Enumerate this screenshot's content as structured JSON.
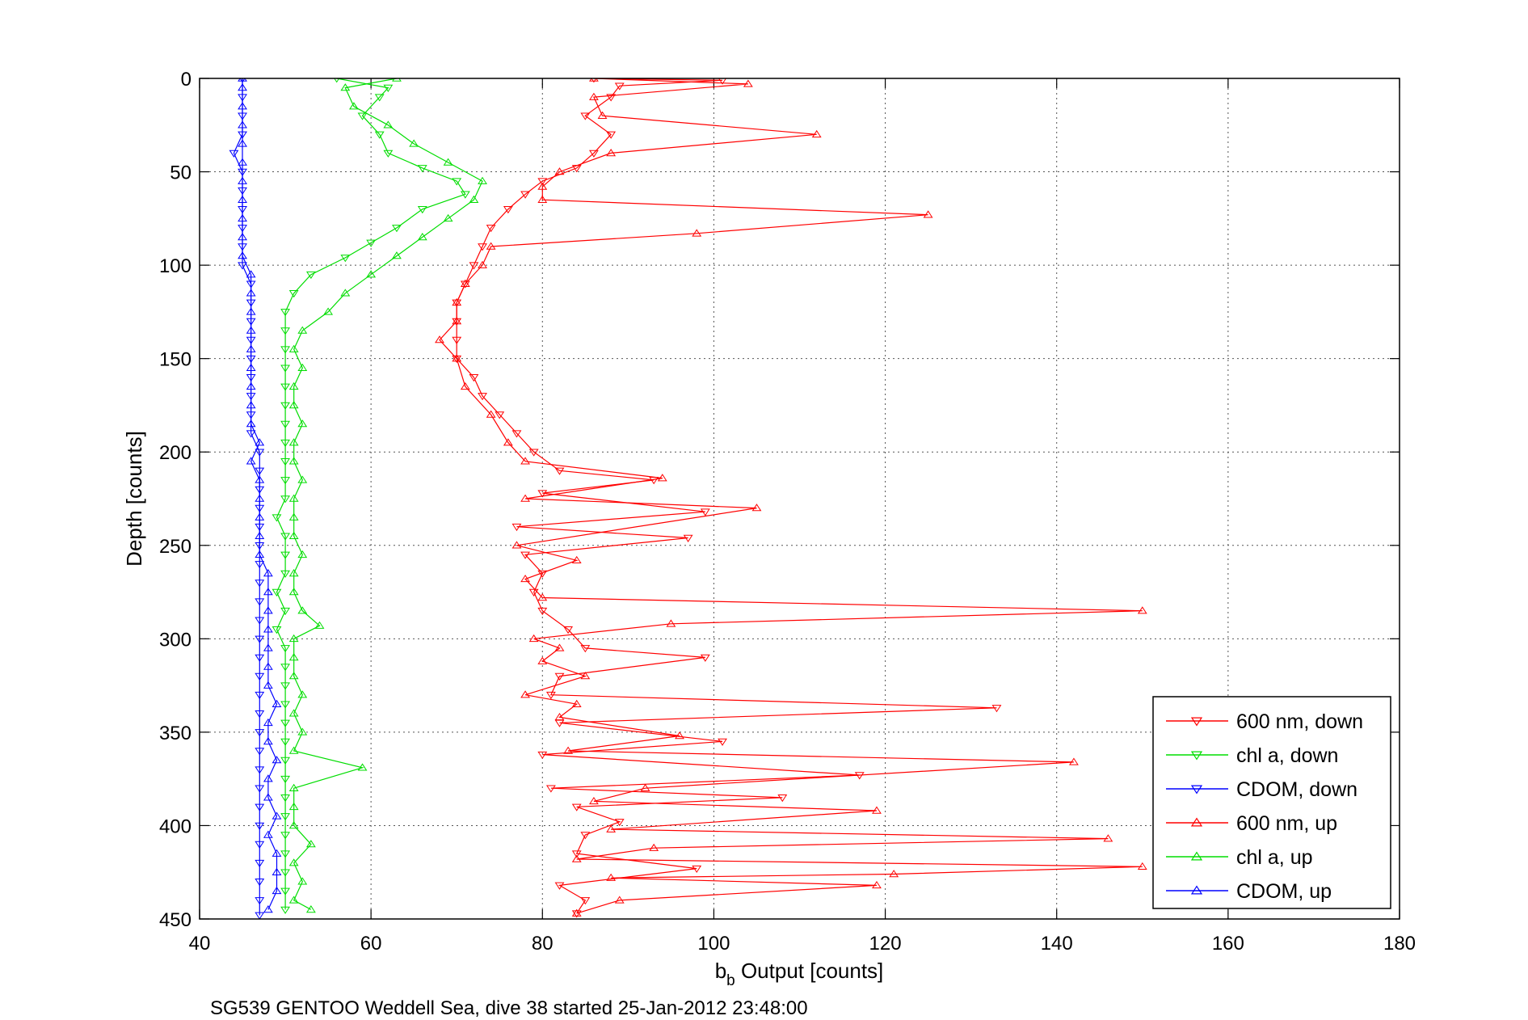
{
  "chart_data": {
    "type": "line",
    "xlabel_main": "b",
    "xlabel_sub": "b",
    "xlabel_rest": " Output [counts]",
    "ylabel": "Depth [counts]",
    "caption": "SG539 GENTOO Weddell Sea, dive 38 started 25-Jan-2012 23:48:00",
    "xlim": [
      40,
      180
    ],
    "ylim": [
      0,
      450
    ],
    "y_reversed": true,
    "grid": true,
    "legend_placement": "bottom-right",
    "x_ticks": [
      "40",
      "60",
      "80",
      "100",
      "120",
      "140",
      "160",
      "180"
    ],
    "y_ticks": [
      "0",
      "50",
      "100",
      "150",
      "200",
      "250",
      "300",
      "350",
      "400",
      "450"
    ],
    "series": [
      {
        "name": "600 nm, down",
        "color": "#ff0000",
        "marker": "triangle-down",
        "points": [
          [
            86,
            0
          ],
          [
            101,
            1
          ],
          [
            89,
            4
          ],
          [
            88,
            10
          ],
          [
            85,
            20
          ],
          [
            88,
            30
          ],
          [
            86,
            40
          ],
          [
            84,
            48
          ],
          [
            80,
            55
          ],
          [
            78,
            62
          ],
          [
            76,
            70
          ],
          [
            74,
            80
          ],
          [
            73,
            90
          ],
          [
            72,
            100
          ],
          [
            71,
            110
          ],
          [
            70,
            120
          ],
          [
            70,
            130
          ],
          [
            70,
            140
          ],
          [
            70,
            150
          ],
          [
            72,
            160
          ],
          [
            73,
            170
          ],
          [
            75,
            180
          ],
          [
            77,
            190
          ],
          [
            79,
            200
          ],
          [
            82,
            210
          ],
          [
            93,
            215
          ],
          [
            80,
            222
          ],
          [
            99,
            232
          ],
          [
            77,
            240
          ],
          [
            97,
            246
          ],
          [
            78,
            255
          ],
          [
            80,
            265
          ],
          [
            79,
            275
          ],
          [
            80,
            285
          ],
          [
            83,
            295
          ],
          [
            85,
            305
          ],
          [
            99,
            310
          ],
          [
            82,
            320
          ],
          [
            81,
            330
          ],
          [
            133,
            337
          ],
          [
            82,
            345
          ],
          [
            101,
            355
          ],
          [
            80,
            362
          ],
          [
            117,
            373
          ],
          [
            81,
            380
          ],
          [
            108,
            385
          ],
          [
            84,
            390
          ],
          [
            89,
            398
          ],
          [
            85,
            405
          ],
          [
            84,
            415
          ],
          [
            98,
            423
          ],
          [
            82,
            432
          ],
          [
            85,
            440
          ],
          [
            84,
            447
          ]
        ]
      },
      {
        "name": "chl a, down",
        "color": "#00dd00",
        "marker": "triangle-down",
        "points": [
          [
            56,
            0
          ],
          [
            62,
            5
          ],
          [
            61,
            10
          ],
          [
            59,
            20
          ],
          [
            61,
            30
          ],
          [
            62,
            40
          ],
          [
            66,
            48
          ],
          [
            70,
            55
          ],
          [
            71,
            62
          ],
          [
            66,
            70
          ],
          [
            63,
            80
          ],
          [
            60,
            88
          ],
          [
            57,
            96
          ],
          [
            53,
            105
          ],
          [
            51,
            115
          ],
          [
            50,
            125
          ],
          [
            50,
            135
          ],
          [
            50,
            145
          ],
          [
            50,
            155
          ],
          [
            50,
            165
          ],
          [
            50,
            175
          ],
          [
            50,
            185
          ],
          [
            50,
            195
          ],
          [
            50,
            205
          ],
          [
            50,
            215
          ],
          [
            50,
            225
          ],
          [
            49,
            235
          ],
          [
            50,
            245
          ],
          [
            50,
            255
          ],
          [
            50,
            265
          ],
          [
            49,
            275
          ],
          [
            50,
            285
          ],
          [
            49,
            295
          ],
          [
            50,
            305
          ],
          [
            50,
            315
          ],
          [
            50,
            325
          ],
          [
            50,
            335
          ],
          [
            50,
            345
          ],
          [
            50,
            355
          ],
          [
            50,
            365
          ],
          [
            50,
            375
          ],
          [
            50,
            385
          ],
          [
            50,
            395
          ],
          [
            50,
            405
          ],
          [
            50,
            415
          ],
          [
            50,
            425
          ],
          [
            50,
            435
          ],
          [
            50,
            445
          ]
        ]
      },
      {
        "name": "CDOM, down",
        "color": "#0000ff",
        "marker": "triangle-down",
        "points": [
          [
            45,
            0
          ],
          [
            45,
            10
          ],
          [
            45,
            20
          ],
          [
            45,
            30
          ],
          [
            44,
            40
          ],
          [
            45,
            50
          ],
          [
            45,
            60
          ],
          [
            45,
            70
          ],
          [
            45,
            80
          ],
          [
            45,
            90
          ],
          [
            45,
            100
          ],
          [
            46,
            110
          ],
          [
            46,
            120
          ],
          [
            46,
            130
          ],
          [
            46,
            140
          ],
          [
            46,
            150
          ],
          [
            46,
            160
          ],
          [
            46,
            170
          ],
          [
            46,
            180
          ],
          [
            46,
            190
          ],
          [
            47,
            200
          ],
          [
            47,
            210
          ],
          [
            47,
            220
          ],
          [
            47,
            230
          ],
          [
            47,
            240
          ],
          [
            47,
            250
          ],
          [
            47,
            260
          ],
          [
            47,
            270
          ],
          [
            47,
            280
          ],
          [
            47,
            290
          ],
          [
            47,
            300
          ],
          [
            47,
            310
          ],
          [
            47,
            320
          ],
          [
            47,
            330
          ],
          [
            47,
            340
          ],
          [
            47,
            350
          ],
          [
            47,
            360
          ],
          [
            47,
            370
          ],
          [
            47,
            380
          ],
          [
            47,
            390
          ],
          [
            47,
            400
          ],
          [
            47,
            410
          ],
          [
            47,
            420
          ],
          [
            47,
            430
          ],
          [
            47,
            440
          ],
          [
            47,
            448
          ]
        ]
      },
      {
        "name": "600 nm, up",
        "color": "#ff0000",
        "marker": "triangle-up",
        "points": [
          [
            84,
            447
          ],
          [
            89,
            440
          ],
          [
            119,
            432
          ],
          [
            88,
            428
          ],
          [
            121,
            426
          ],
          [
            150,
            422
          ],
          [
            84,
            418
          ],
          [
            93,
            412
          ],
          [
            146,
            407
          ],
          [
            88,
            402
          ],
          [
            119,
            392
          ],
          [
            86,
            387
          ],
          [
            92,
            380
          ],
          [
            142,
            366
          ],
          [
            83,
            360
          ],
          [
            96,
            352
          ],
          [
            82,
            342
          ],
          [
            84,
            335
          ],
          [
            78,
            330
          ],
          [
            85,
            320
          ],
          [
            80,
            312
          ],
          [
            82,
            305
          ],
          [
            79,
            300
          ],
          [
            95,
            292
          ],
          [
            150,
            285
          ],
          [
            80,
            278
          ],
          [
            78,
            268
          ],
          [
            84,
            258
          ],
          [
            77,
            250
          ],
          [
            105,
            230
          ],
          [
            78,
            225
          ],
          [
            94,
            214
          ],
          [
            78,
            205
          ],
          [
            76,
            195
          ],
          [
            74,
            180
          ],
          [
            71,
            165
          ],
          [
            70,
            150
          ],
          [
            68,
            140
          ],
          [
            70,
            130
          ],
          [
            70,
            120
          ],
          [
            71,
            110
          ],
          [
            73,
            100
          ],
          [
            74,
            90
          ],
          [
            98,
            83
          ],
          [
            125,
            73
          ],
          [
            80,
            65
          ],
          [
            80,
            58
          ],
          [
            82,
            50
          ],
          [
            88,
            40
          ],
          [
            112,
            30
          ],
          [
            87,
            20
          ],
          [
            86,
            10
          ],
          [
            104,
            3
          ],
          [
            86,
            0
          ]
        ]
      },
      {
        "name": "chl a, up",
        "color": "#00dd00",
        "marker": "triangle-up",
        "points": [
          [
            53,
            445
          ],
          [
            51,
            440
          ],
          [
            52,
            430
          ],
          [
            51,
            420
          ],
          [
            53,
            410
          ],
          [
            51,
            400
          ],
          [
            51,
            390
          ],
          [
            51,
            380
          ],
          [
            59,
            369
          ],
          [
            51,
            360
          ],
          [
            52,
            350
          ],
          [
            51,
            340
          ],
          [
            52,
            330
          ],
          [
            51,
            320
          ],
          [
            51,
            310
          ],
          [
            51,
            300
          ],
          [
            54,
            293
          ],
          [
            52,
            285
          ],
          [
            51,
            275
          ],
          [
            51,
            265
          ],
          [
            52,
            255
          ],
          [
            51,
            245
          ],
          [
            51,
            235
          ],
          [
            51,
            225
          ],
          [
            52,
            215
          ],
          [
            51,
            205
          ],
          [
            51,
            195
          ],
          [
            52,
            185
          ],
          [
            51,
            175
          ],
          [
            51,
            165
          ],
          [
            52,
            155
          ],
          [
            51,
            145
          ],
          [
            52,
            135
          ],
          [
            55,
            125
          ],
          [
            57,
            115
          ],
          [
            60,
            105
          ],
          [
            63,
            95
          ],
          [
            66,
            85
          ],
          [
            69,
            75
          ],
          [
            72,
            65
          ],
          [
            73,
            55
          ],
          [
            69,
            45
          ],
          [
            65,
            35
          ],
          [
            62,
            25
          ],
          [
            58,
            15
          ],
          [
            57,
            5
          ],
          [
            63,
            0
          ]
        ]
      },
      {
        "name": "CDOM, up",
        "color": "#0000ff",
        "marker": "triangle-up",
        "points": [
          [
            48,
            445
          ],
          [
            49,
            435
          ],
          [
            49,
            425
          ],
          [
            49,
            415
          ],
          [
            48,
            405
          ],
          [
            49,
            395
          ],
          [
            48,
            385
          ],
          [
            48,
            375
          ],
          [
            49,
            365
          ],
          [
            48,
            355
          ],
          [
            48,
            345
          ],
          [
            49,
            335
          ],
          [
            48,
            325
          ],
          [
            48,
            315
          ],
          [
            48,
            305
          ],
          [
            48,
            295
          ],
          [
            48,
            285
          ],
          [
            48,
            275
          ],
          [
            48,
            265
          ],
          [
            47,
            255
          ],
          [
            47,
            245
          ],
          [
            47,
            235
          ],
          [
            47,
            225
          ],
          [
            47,
            215
          ],
          [
            46,
            205
          ],
          [
            47,
            195
          ],
          [
            46,
            185
          ],
          [
            46,
            175
          ],
          [
            46,
            165
          ],
          [
            46,
            155
          ],
          [
            46,
            145
          ],
          [
            46,
            135
          ],
          [
            46,
            125
          ],
          [
            46,
            115
          ],
          [
            46,
            105
          ],
          [
            45,
            95
          ],
          [
            45,
            85
          ],
          [
            45,
            75
          ],
          [
            45,
            65
          ],
          [
            45,
            55
          ],
          [
            45,
            45
          ],
          [
            45,
            35
          ],
          [
            45,
            25
          ],
          [
            45,
            15
          ],
          [
            45,
            5
          ],
          [
            45,
            0
          ]
        ]
      }
    ]
  }
}
